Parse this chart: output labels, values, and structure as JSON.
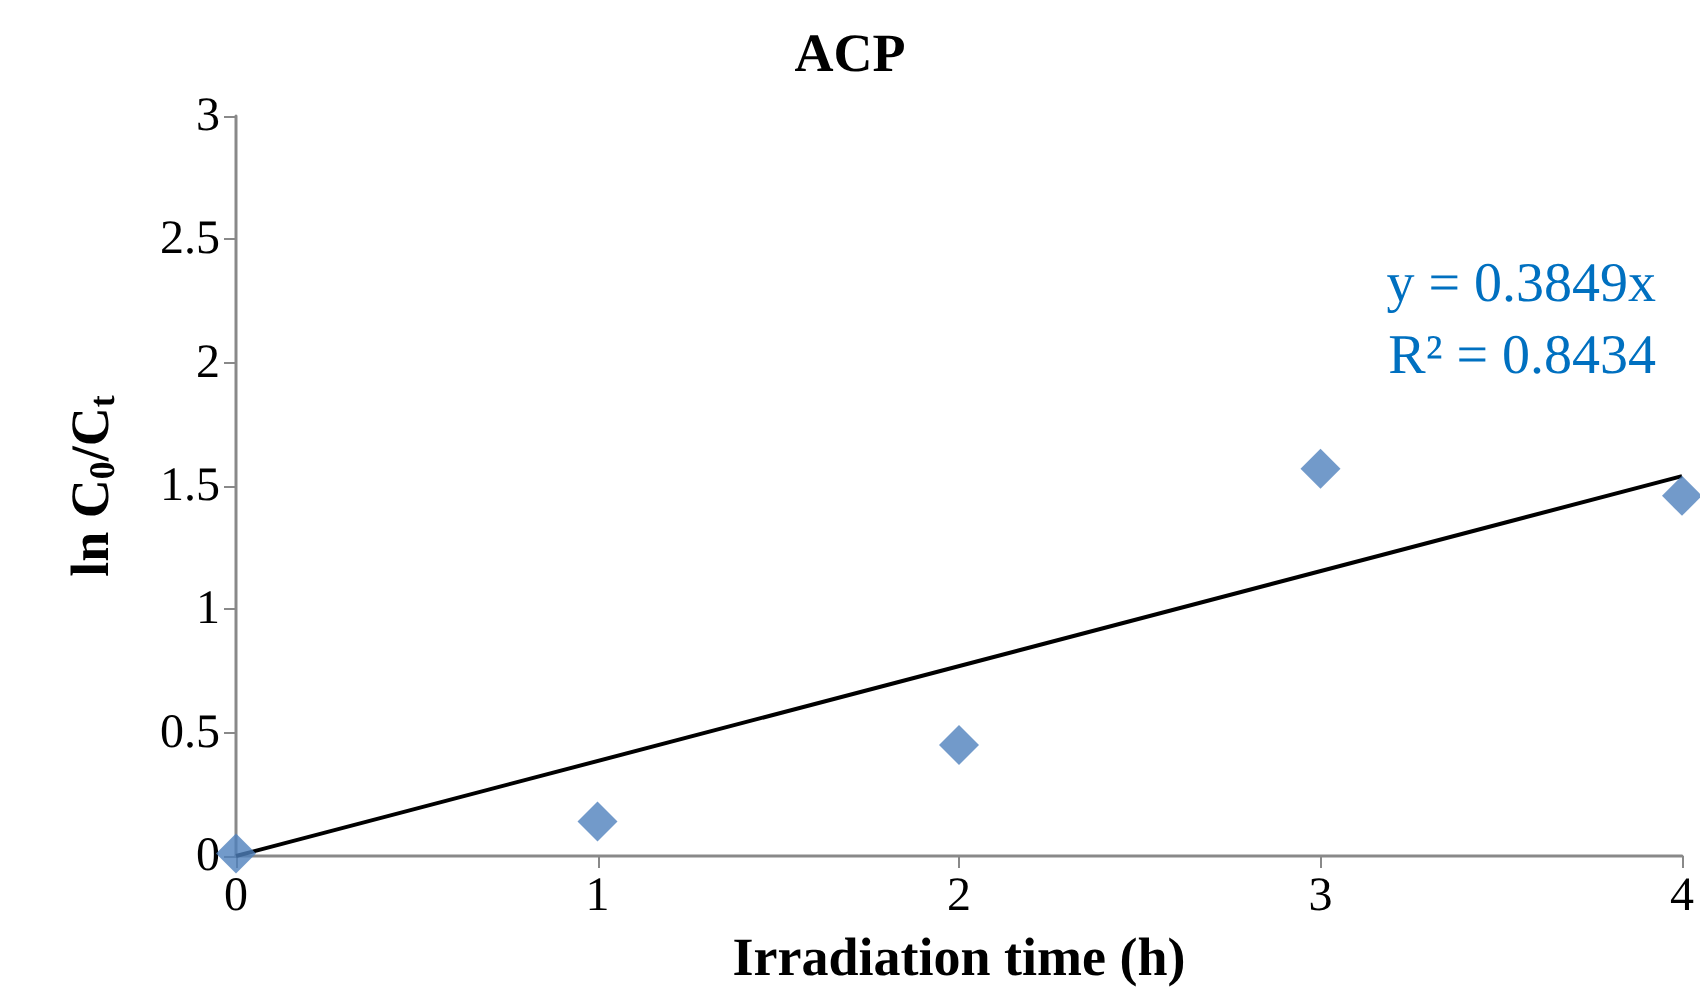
{
  "chart_data": {
    "type": "scatter",
    "title": "ACP",
    "xlabel": "Irradiation time (h)",
    "ylabel": "ln C$_{0}$/C$_{t}$",
    "annotations": [
      "y = 0.3849x",
      "R² = 0.8434"
    ],
    "xlim": [
      0,
      4
    ],
    "xticks": [
      0,
      1,
      2,
      3,
      4
    ],
    "ylim": [
      0,
      3
    ],
    "yticks": [
      0,
      0.5,
      1,
      1.5,
      2,
      2.5,
      3
    ],
    "grid": false,
    "series": [
      {
        "marker": "diamond",
        "color": "#4f81bd",
        "x": [
          0,
          1,
          2,
          3,
          4
        ],
        "values": [
          0.01,
          0.14,
          0.45,
          1.57,
          1.46
        ]
      },
      {
        "type": "line",
        "marker": "none",
        "line_style": "solid",
        "color": "#000000",
        "x": [
          0,
          4
        ],
        "values": [
          0,
          1.54
        ]
      }
    ]
  }
}
